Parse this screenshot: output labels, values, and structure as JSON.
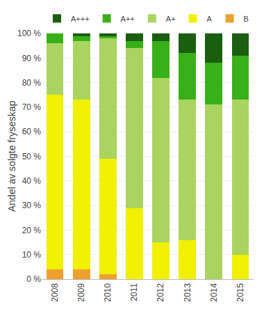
{
  "chart_data": {
    "type": "bar",
    "stacked": true,
    "categories": [
      "2008",
      "2009",
      "2010",
      "2011",
      "2012",
      "2013",
      "2014",
      "2015"
    ],
    "series": [
      {
        "name": "B",
        "color": "#f0a030",
        "values": [
          4,
          4,
          2,
          0,
          0,
          0,
          0,
          0
        ]
      },
      {
        "name": "A",
        "color": "#f0f000",
        "values": [
          71,
          69,
          47,
          29,
          15,
          16,
          0,
          10
        ]
      },
      {
        "name": "A+",
        "color": "#aad460",
        "values": [
          21,
          24,
          49,
          65,
          67,
          57,
          71,
          63
        ]
      },
      {
        "name": "A++",
        "color": "#38b018",
        "values": [
          4,
          2,
          1,
          3,
          15,
          19,
          17,
          18
        ]
      },
      {
        "name": "A+++",
        "color": "#1a5e10",
        "values": [
          0,
          1,
          1,
          3,
          3,
          8,
          12,
          9
        ]
      }
    ],
    "ylabel": "Andel av solgte fryseskap",
    "ylim": [
      0,
      100
    ],
    "yticks": [
      {
        "value": 0,
        "label": "0 %"
      },
      {
        "value": 10,
        "label": "10 %"
      },
      {
        "value": 20,
        "label": "20 %"
      },
      {
        "value": 30,
        "label": "30 %"
      },
      {
        "value": 40,
        "label": "40 %"
      },
      {
        "value": 50,
        "label": "50 %"
      },
      {
        "value": 60,
        "label": "60 %"
      },
      {
        "value": 70,
        "label": "70 %"
      },
      {
        "value": 80,
        "label": "80 %"
      },
      {
        "value": 90,
        "label": "90 %"
      },
      {
        "value": 100,
        "label": "100 %"
      }
    ],
    "grid": true,
    "legend": "top"
  }
}
